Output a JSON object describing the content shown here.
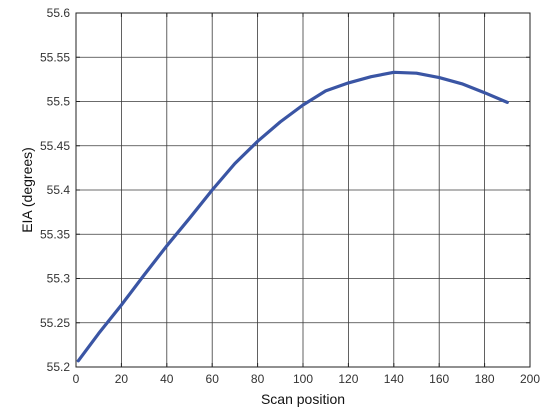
{
  "chart_data": {
    "type": "line",
    "title": "",
    "xlabel": "Scan position",
    "ylabel": "EIA (degrees)",
    "xlim": [
      0,
      200
    ],
    "ylim": [
      55.2,
      55.6
    ],
    "x_ticks": [
      0,
      20,
      40,
      60,
      80,
      100,
      120,
      140,
      160,
      180,
      200
    ],
    "y_ticks": [
      55.2,
      55.25,
      55.3,
      55.35,
      55.4,
      55.45,
      55.5,
      55.55,
      55.6
    ],
    "grid": true,
    "legend": "none",
    "series": [
      {
        "color": "#3a55a4",
        "x": [
          1,
          10,
          20,
          30,
          40,
          50,
          60,
          70,
          80,
          90,
          100,
          110,
          120,
          130,
          140,
          150,
          160,
          170,
          180,
          190
        ],
        "y": [
          55.207,
          55.238,
          55.27,
          55.304,
          55.337,
          55.368,
          55.4,
          55.43,
          55.455,
          55.477,
          55.496,
          55.512,
          55.521,
          55.528,
          55.533,
          55.532,
          55.527,
          55.52,
          55.51,
          55.499
        ]
      }
    ]
  }
}
